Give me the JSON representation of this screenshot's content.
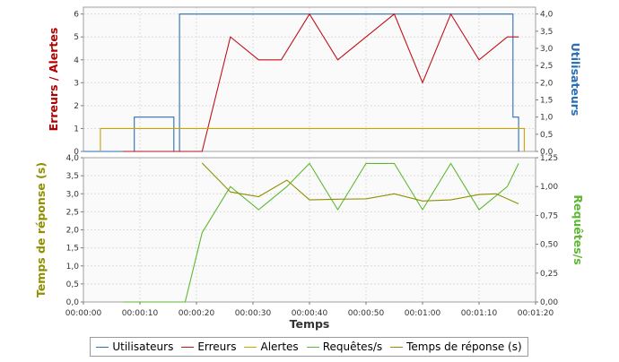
{
  "chart_data": [
    {
      "type": "line",
      "panel": "top",
      "x_domain": [
        "00:00:00",
        "00:01:20"
      ],
      "y_left": {
        "label": "Erreurs / Alertes",
        "ylim": [
          0,
          6.3
        ],
        "ticks": [
          "0",
          "1",
          "2",
          "3",
          "4",
          "5",
          "6"
        ],
        "tick_values": [
          0,
          1,
          2,
          3,
          4,
          5,
          6
        ]
      },
      "y_right": {
        "label": "Utilisateurs",
        "ylim": [
          0,
          4.2
        ],
        "ticks": [
          "0,0",
          "0,5",
          "1,0",
          "1,5",
          "2,0",
          "2,5",
          "3,0",
          "3,5",
          "4,0"
        ],
        "tick_values": [
          0,
          0.5,
          1,
          1.5,
          2,
          2.5,
          3,
          3.5,
          4
        ]
      },
      "grid": true,
      "series": [
        {
          "name": "Utilisateurs",
          "axis": "right",
          "color": "#2a6eb5",
          "step": true,
          "x": [
            "00:00:00",
            "00:00:06",
            "00:00:06",
            "00:00:09",
            "00:00:09",
            "00:00:16",
            "00:00:16",
            "00:00:17",
            "00:00:17",
            "00:01:16",
            "00:01:16",
            "00:01:17",
            "00:01:17"
          ],
          "y": [
            0,
            0,
            0,
            0,
            1,
            1,
            0,
            0,
            4,
            4,
            1,
            1,
            0
          ]
        },
        {
          "name": "Erreurs",
          "axis": "left",
          "color": "#c0121b",
          "x": [
            "00:00:07",
            "00:00:21",
            "00:00:26",
            "00:00:31",
            "00:00:35",
            "00:00:40",
            "00:00:45",
            "00:00:50",
            "00:00:55",
            "00:01:00",
            "00:01:05",
            "00:01:10",
            "00:01:15",
            "00:01:17"
          ],
          "y": [
            0,
            0,
            5,
            4,
            4,
            6,
            4,
            5,
            6,
            3,
            6,
            4,
            5,
            5
          ]
        },
        {
          "name": "Alertes",
          "axis": "left",
          "color": "#c9a400",
          "step": true,
          "x": [
            "00:00:03",
            "00:00:03",
            "00:01:18",
            "00:01:18"
          ],
          "y": [
            0,
            1,
            1,
            0
          ]
        }
      ]
    },
    {
      "type": "line",
      "panel": "bottom",
      "x_domain": [
        "00:00:00",
        "00:01:20"
      ],
      "xlabel": "Temps",
      "x_ticks": [
        "00:00:00",
        "00:00:10",
        "00:00:20",
        "00:00:30",
        "00:00:40",
        "00:00:50",
        "00:01:00",
        "00:01:10",
        "00:01:20"
      ],
      "y_left": {
        "label": "Temps de réponse (s)",
        "ylim": [
          0,
          4
        ],
        "ticks": [
          "0,0",
          "0,5",
          "1,0",
          "1,5",
          "2,0",
          "2,5",
          "3,0",
          "3,5",
          "4,0"
        ],
        "tick_values": [
          0,
          0.5,
          1,
          1.5,
          2,
          2.5,
          3,
          3.5,
          4
        ]
      },
      "y_right": {
        "label": "Requêtes/s",
        "ylim": [
          0,
          1.25
        ],
        "ticks": [
          "0,00",
          "0,25",
          "0,50",
          "0,75",
          "1,00",
          "1,25"
        ],
        "tick_values": [
          0,
          0.25,
          0.5,
          0.75,
          1.0,
          1.25
        ]
      },
      "grid": true,
      "series": [
        {
          "name": "Requêtes/s",
          "axis": "right",
          "color": "#5cb832",
          "x": [
            "00:00:07",
            "00:00:18",
            "00:00:21",
            "00:00:26",
            "00:00:31",
            "00:00:36",
            "00:00:40",
            "00:00:45",
            "00:00:50",
            "00:00:55",
            "00:01:00",
            "00:01:05",
            "00:01:10",
            "00:01:15",
            "00:01:17"
          ],
          "y": [
            0,
            0,
            0.6,
            1.0,
            0.8,
            1.0,
            1.2,
            0.8,
            1.2,
            1.2,
            0.8,
            1.2,
            0.8,
            1.0,
            1.2
          ]
        },
        {
          "name": "Temps de réponse (s)",
          "axis": "left",
          "color": "#8f8f00",
          "x": [
            "00:00:21",
            "00:00:26",
            "00:00:31",
            "00:00:36",
            "00:00:40",
            "00:00:45",
            "00:00:50",
            "00:00:55",
            "00:01:00",
            "00:01:05",
            "00:01:10",
            "00:01:13",
            "00:01:17"
          ],
          "y": [
            3.85,
            3.05,
            2.92,
            3.38,
            2.83,
            2.85,
            2.86,
            3.0,
            2.8,
            2.83,
            2.98,
            3.0,
            2.72
          ]
        }
      ]
    }
  ],
  "legend": [
    {
      "label": "Utilisateurs",
      "color": "#2a6eb5"
    },
    {
      "label": "Erreurs",
      "color": "#c0121b"
    },
    {
      "label": "Alertes",
      "color": "#c9a400"
    },
    {
      "label": "Requêtes/s",
      "color": "#5cb832"
    },
    {
      "label": "Temps de réponse (s)",
      "color": "#8f8f00"
    }
  ]
}
